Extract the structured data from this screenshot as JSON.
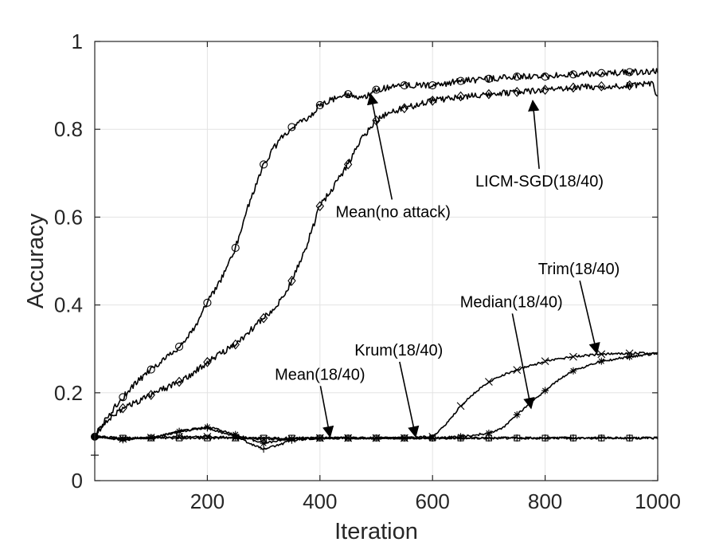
{
  "chart_data": {
    "type": "line",
    "title": "",
    "xlabel": "Iteration",
    "ylabel": "Accuracy",
    "xlim": [
      0,
      1000
    ],
    "ylim": [
      0,
      1
    ],
    "xticks": [
      200,
      400,
      600,
      800,
      1000
    ],
    "xtick_labels": [
      "200",
      "400",
      "600",
      "800",
      "1000"
    ],
    "yticks": [
      0,
      0.2,
      0.4,
      0.6,
      0.8,
      1
    ],
    "ytick_labels": [
      "0",
      "0.2",
      "0.4",
      "0.6",
      "0.8",
      "1"
    ],
    "grid": true,
    "series": [
      {
        "name": "Mean(no attack)",
        "marker": "circle",
        "x": [
          0,
          25,
          50,
          75,
          100,
          125,
          150,
          175,
          200,
          225,
          250,
          275,
          300,
          325,
          350,
          375,
          400,
          425,
          450,
          475,
          500,
          550,
          600,
          650,
          700,
          750,
          800,
          850,
          900,
          950,
          1000
        ],
        "y": [
          0.1,
          0.15,
          0.19,
          0.225,
          0.253,
          0.278,
          0.305,
          0.345,
          0.405,
          0.46,
          0.53,
          0.635,
          0.72,
          0.77,
          0.805,
          0.82,
          0.855,
          0.87,
          0.88,
          0.87,
          0.89,
          0.9,
          0.9,
          0.91,
          0.915,
          0.92,
          0.92,
          0.925,
          0.928,
          0.93,
          0.932
        ]
      },
      {
        "name": "LICM-SGD(18/40)",
        "marker": "diamond",
        "x": [
          0,
          25,
          50,
          75,
          100,
          125,
          150,
          175,
          200,
          225,
          250,
          275,
          300,
          325,
          350,
          375,
          400,
          425,
          450,
          475,
          500,
          525,
          550,
          600,
          650,
          700,
          750,
          800,
          850,
          900,
          950,
          990,
          1000
        ],
        "y": [
          0.1,
          0.14,
          0.165,
          0.18,
          0.195,
          0.21,
          0.225,
          0.245,
          0.27,
          0.29,
          0.31,
          0.34,
          0.37,
          0.4,
          0.455,
          0.53,
          0.625,
          0.67,
          0.72,
          0.78,
          0.82,
          0.84,
          0.848,
          0.865,
          0.875,
          0.88,
          0.885,
          0.89,
          0.895,
          0.898,
          0.9,
          0.905,
          0.87
        ]
      },
      {
        "name": "Trim(18/40)",
        "marker": "x",
        "x": [
          0,
          50,
          100,
          150,
          200,
          250,
          300,
          350,
          400,
          450,
          500,
          550,
          600,
          625,
          650,
          675,
          700,
          725,
          750,
          775,
          800,
          850,
          900,
          950,
          1000
        ],
        "y": [
          0.1,
          0.095,
          0.098,
          0.1,
          0.1,
          0.098,
          0.095,
          0.095,
          0.097,
          0.097,
          0.097,
          0.097,
          0.1,
          0.13,
          0.17,
          0.2,
          0.225,
          0.24,
          0.252,
          0.262,
          0.272,
          0.282,
          0.288,
          0.29,
          0.29
        ]
      },
      {
        "name": "Median(18/40)",
        "marker": "asterisk",
        "x": [
          0,
          50,
          100,
          150,
          200,
          250,
          300,
          350,
          400,
          450,
          500,
          550,
          600,
          650,
          700,
          725,
          750,
          775,
          800,
          825,
          850,
          875,
          900,
          950,
          1000
        ],
        "y": [
          0.1,
          0.095,
          0.098,
          0.112,
          0.122,
          0.105,
          0.085,
          0.095,
          0.097,
          0.097,
          0.097,
          0.097,
          0.097,
          0.1,
          0.108,
          0.12,
          0.15,
          0.178,
          0.205,
          0.23,
          0.25,
          0.262,
          0.272,
          0.282,
          0.29
        ]
      },
      {
        "name": "Krum(18/40)",
        "marker": "plus",
        "x": [
          0,
          50,
          100,
          150,
          200,
          250,
          275,
          300,
          325,
          350,
          400,
          450,
          500,
          550,
          600,
          650,
          700,
          750,
          800,
          850,
          900,
          950,
          1000
        ],
        "y": [
          0.1,
          0.093,
          0.098,
          0.112,
          0.12,
          0.1,
          0.085,
          0.072,
          0.08,
          0.092,
          0.097,
          0.097,
          0.097,
          0.097,
          0.097,
          0.097,
          0.097,
          0.097,
          0.097,
          0.097,
          0.097,
          0.097,
          0.097
        ]
      },
      {
        "name": "Mean(18/40)",
        "marker": "square",
        "x": [
          0,
          50,
          100,
          150,
          200,
          250,
          300,
          350,
          400,
          450,
          500,
          550,
          600,
          650,
          700,
          750,
          800,
          850,
          900,
          950,
          1000
        ],
        "y": [
          0.1,
          0.097,
          0.097,
          0.097,
          0.097,
          0.097,
          0.097,
          0.097,
          0.097,
          0.097,
          0.097,
          0.097,
          0.097,
          0.097,
          0.097,
          0.097,
          0.097,
          0.097,
          0.097,
          0.097,
          0.097
        ]
      }
    ],
    "annotations": [
      {
        "text": "Mean(no attack)",
        "text_at": [
          530,
          0.6
        ],
        "arrow_to": [
          490,
          0.88
        ]
      },
      {
        "text": "LICM-SGD(18/40)",
        "text_at": [
          790,
          0.67
        ],
        "arrow_to": [
          778,
          0.865
        ]
      },
      {
        "text": "Trim(18/40)",
        "text_at": [
          860,
          0.47
        ],
        "arrow_to": [
          892,
          0.29
        ]
      },
      {
        "text": "Median(18/40)",
        "text_at": [
          740,
          0.395
        ],
        "arrow_to": [
          775,
          0.165
        ]
      },
      {
        "text": "Krum(18/40)",
        "text_at": [
          540,
          0.285
        ],
        "arrow_to": [
          570,
          0.1
        ]
      },
      {
        "text": "Mean(18/40)",
        "text_at": [
          400,
          0.23
        ],
        "arrow_to": [
          418,
          0.1
        ]
      }
    ]
  }
}
